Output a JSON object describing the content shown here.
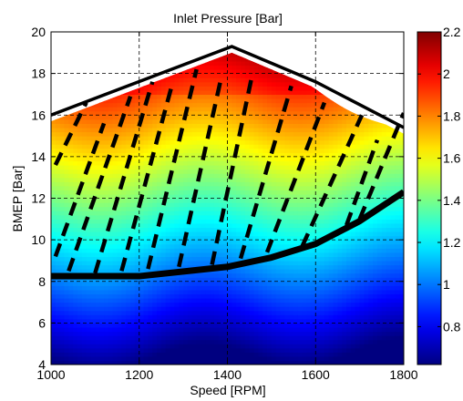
{
  "chart_data": {
    "type": "heatmap",
    "title": "Inlet Pressure [Bar]",
    "xlabel": "Speed [RPM]",
    "ylabel": "BMEP [Bar]",
    "xlim": [
      1000,
      1800
    ],
    "ylim": [
      4,
      20
    ],
    "x_ticks": [
      "1000",
      "1200",
      "1400",
      "1600",
      "1800"
    ],
    "y_ticks": [
      "4",
      "6",
      "8",
      "10",
      "12",
      "14",
      "16",
      "18",
      "20"
    ],
    "grid": true,
    "colormap": "jet",
    "colorbar": {
      "range": [
        0.62,
        2.2
      ],
      "ticks": [
        "0.8",
        "1",
        "1.2",
        "1.4",
        "1.6",
        "1.8",
        "2",
        "2.2"
      ]
    },
    "upper_limit_line": {
      "x": [
        1000,
        1410,
        1600,
        1800
      ],
      "y": [
        16.0,
        19.3,
        17.6,
        15.4
      ]
    },
    "lower_boundary_line": {
      "x": [
        1000,
        1200,
        1400,
        1500,
        1600,
        1700,
        1800
      ],
      "y": [
        8.25,
        8.25,
        8.7,
        9.15,
        9.8,
        10.9,
        12.3
      ]
    },
    "dashed_segments": [
      {
        "x": [
          1010,
          1080
        ],
        "y": [
          13.6,
          16.6
        ]
      },
      {
        "x": [
          1010,
          1120
        ],
        "y": [
          9.2,
          15.6
        ]
      },
      {
        "x": [
          1040,
          1180
        ],
        "y": [
          8.5,
          16.9
        ]
      },
      {
        "x": [
          1100,
          1230
        ],
        "y": [
          8.4,
          17.6
        ]
      },
      {
        "x": [
          1160,
          1275
        ],
        "y": [
          8.5,
          17.5
        ]
      },
      {
        "x": [
          1220,
          1330
        ],
        "y": [
          8.6,
          18.2
        ]
      },
      {
        "x": [
          1290,
          1385
        ],
        "y": [
          8.7,
          17.7
        ]
      },
      {
        "x": [
          1365,
          1455
        ],
        "y": [
          8.8,
          17.8
        ]
      },
      {
        "x": [
          1430,
          1545
        ],
        "y": [
          9.1,
          17.4
        ]
      },
      {
        "x": [
          1490,
          1620
        ],
        "y": [
          9.4,
          16.6
        ]
      },
      {
        "x": [
          1570,
          1705
        ],
        "y": [
          9.7,
          16.0
        ]
      },
      {
        "x": [
          1670,
          1740
        ],
        "y": [
          10.7,
          14.8
        ]
      },
      {
        "x": [
          1700,
          1800
        ],
        "y": [
          11.0,
          16.1
        ]
      }
    ]
  }
}
